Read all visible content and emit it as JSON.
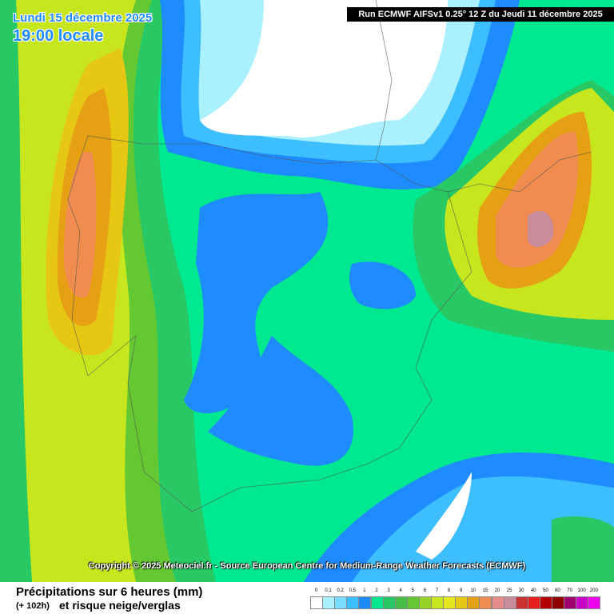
{
  "header": {
    "date": "Lundi 15 décembre 2025",
    "time": "19:00 locale",
    "run": "Run ECMWF AIFSv1 0.25° 12 Z du Jeudi 11 décembre 2025"
  },
  "copyright": "Copyright © 2025 Meteociel.fr - Source European Centre for Medium-Range Weather Forecasts (ECMWF)",
  "footer": {
    "title": "Précipitations sur 6 heures (mm)",
    "lead": "(+ 102h)",
    "subtitle": "et risque neige/verglas"
  },
  "legend": [
    {
      "label": "0",
      "color": "#ffffff"
    },
    {
      "label": "0.1",
      "color": "#aaf0ff"
    },
    {
      "label": "0.2",
      "color": "#78dcff"
    },
    {
      "label": "0.5",
      "color": "#3cbeff"
    },
    {
      "label": "1",
      "color": "#1e8cff"
    },
    {
      "label": "2",
      "color": "#00e68c"
    },
    {
      "label": "3",
      "color": "#28c864"
    },
    {
      "label": "4",
      "color": "#46be46"
    },
    {
      "label": "5",
      "color": "#64c832"
    },
    {
      "label": "6",
      "color": "#96d228"
    },
    {
      "label": "7",
      "color": "#c8e61e"
    },
    {
      "label": "8",
      "color": "#e6e61e"
    },
    {
      "label": "9",
      "color": "#e6c814"
    },
    {
      "label": "10",
      "color": "#e6a014"
    },
    {
      "label": "15",
      "color": "#f08c50"
    },
    {
      "label": "20",
      "color": "#e68c8c"
    },
    {
      "label": "25",
      "color": "#c88c9b"
    },
    {
      "label": "30",
      "color": "#c83232"
    },
    {
      "label": "40",
      "color": "#e61e1e"
    },
    {
      "label": "50",
      "color": "#b40000"
    },
    {
      "label": "60",
      "color": "#8c0000"
    },
    {
      "label": "70",
      "color": "#a0006e"
    },
    {
      "label": "100",
      "color": "#c800c8"
    },
    {
      "label": "200",
      "color": "#f000f0"
    }
  ]
}
